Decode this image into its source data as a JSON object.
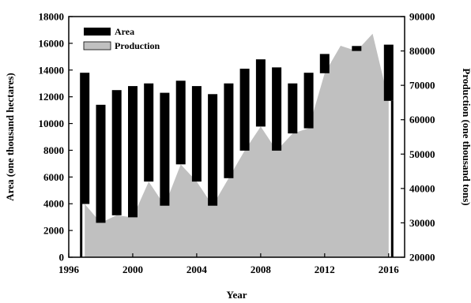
{
  "chart_data": {
    "type": "bar",
    "title": "",
    "xlabel": "Year",
    "ylabel_left": "Area (one thousand hectares)",
    "ylabel_right": "Production (one thousand tons)",
    "xlim": [
      1996,
      2017
    ],
    "ylim_left": [
      0,
      18000
    ],
    "ylim_right": [
      20000,
      90000
    ],
    "x_ticks": [
      1996,
      2000,
      2004,
      2008,
      2012,
      2016
    ],
    "y_ticks_left": [
      0,
      2000,
      4000,
      6000,
      8000,
      10000,
      12000,
      14000,
      16000,
      18000
    ],
    "y_ticks_right": [
      20000,
      30000,
      40000,
      50000,
      60000,
      70000,
      80000,
      90000
    ],
    "legend_position": "top-left",
    "grid": false,
    "years": [
      1997,
      1998,
      1999,
      2000,
      2001,
      2002,
      2003,
      2004,
      2005,
      2006,
      2007,
      2008,
      2009,
      2010,
      2011,
      2012,
      2013,
      2014,
      2015,
      2016
    ],
    "series": [
      {
        "name": "Area",
        "type": "bar",
        "axis": "left",
        "color": "#000000",
        "values": [
          13800,
          11400,
          12500,
          12800,
          13000,
          12300,
          13200,
          12800,
          12200,
          13000,
          14100,
          14800,
          14200,
          13000,
          13800,
          15200,
          15800,
          15800,
          15700,
          15900
        ]
      },
      {
        "name": "Production",
        "type": "area",
        "axis": "right",
        "color": "#c0c0c0",
        "values": [
          35500,
          30000,
          32200,
          31600,
          42000,
          35000,
          47000,
          42000,
          35000,
          43000,
          51000,
          58000,
          51000,
          56000,
          57500,
          73500,
          81500,
          80000,
          85000,
          65500
        ]
      }
    ]
  }
}
